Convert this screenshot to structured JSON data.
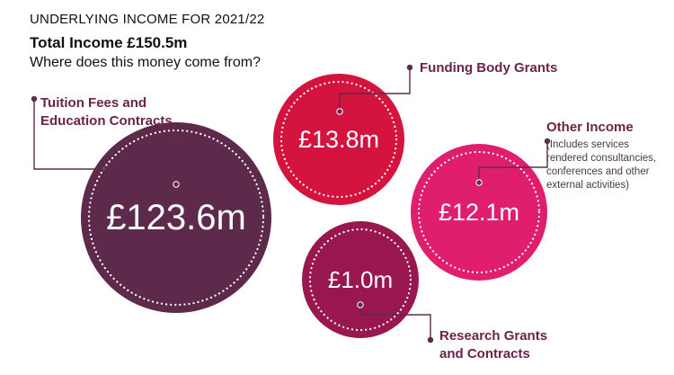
{
  "header": {
    "kicker": "UNDERLYING INCOME FOR 2021/22",
    "total": "Total Income £150.5m",
    "question": "Where does this money come from?"
  },
  "chart_data": {
    "type": "bubble",
    "unit": "£m",
    "total": 150.5,
    "items": [
      {
        "label": "Tuition Fees and Education Contracts",
        "value": 123.6,
        "display": "£123.6m",
        "color": "#5e2a4b"
      },
      {
        "label": "Funding Body Grants",
        "value": 13.8,
        "display": "£13.8m",
        "color": "#d4143f"
      },
      {
        "label": "Other Income",
        "note": "(Includes services rendered consultancies, conferences and other external activities)",
        "value": 12.1,
        "display": "£12.1m",
        "color": "#df1f6e"
      },
      {
        "label": "Research Grants and Contracts",
        "value": 1.0,
        "display": "£1.0m",
        "color": "#99174f"
      }
    ]
  },
  "colors": {
    "label": "#6b2347",
    "connector": "#5e2a4b",
    "text": "#111111"
  }
}
